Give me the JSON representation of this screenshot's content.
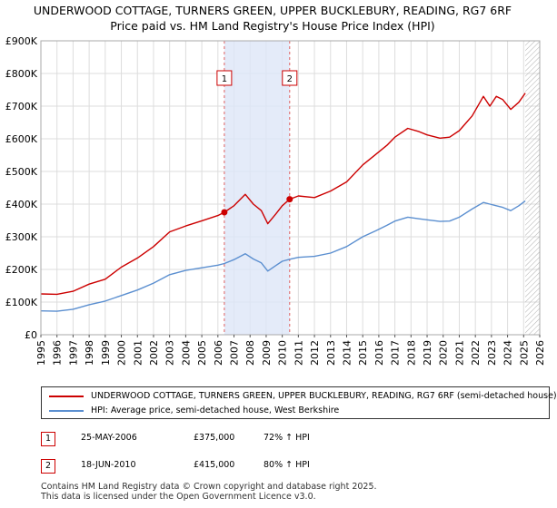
{
  "title_line1": "UNDERWOOD COTTAGE, TURNERS GREEN, UPPER BUCKLEBURY, READING, RG7 6RF",
  "title_line2": "Price paid vs. HM Land Registry's House Price Index (HPI)",
  "chart_data": {
    "type": "line",
    "title": "UNDERWOOD COTTAGE, TURNERS GREEN, UPPER BUCKLEBURY, READING, RG7 6RF — Price paid vs. HM Land Registry's House Price Index (HPI)",
    "xlim": [
      1995,
      2026
    ],
    "ylim": [
      0,
      900000
    ],
    "x_ticks": [
      "1995",
      "1996",
      "1997",
      "1998",
      "1999",
      "2000",
      "2001",
      "2002",
      "2003",
      "2004",
      "2005",
      "2006",
      "2007",
      "2008",
      "2009",
      "2010",
      "2011",
      "2012",
      "2013",
      "2014",
      "2015",
      "2016",
      "2017",
      "2018",
      "2019",
      "2020",
      "2021",
      "2022",
      "2023",
      "2024",
      "2025",
      "2026"
    ],
    "y_ticks": [
      {
        "value": 0,
        "label": "£0"
      },
      {
        "value": 100000,
        "label": "£100K"
      },
      {
        "value": 200000,
        "label": "£200K"
      },
      {
        "value": 300000,
        "label": "£300K"
      },
      {
        "value": 400000,
        "label": "£400K"
      },
      {
        "value": 500000,
        "label": "£500K"
      },
      {
        "value": 600000,
        "label": "£600K"
      },
      {
        "value": 700000,
        "label": "£700K"
      },
      {
        "value": 800000,
        "label": "£800K"
      },
      {
        "value": 900000,
        "label": "£900K"
      }
    ],
    "shaded_period": [
      2006.4,
      2010.46
    ],
    "forecast_from": 2025.1,
    "series": [
      {
        "name": "UNDERWOOD COTTAGE, TURNERS GREEN, UPPER BUCKLEBURY, READING, RG7 6RF (semi-detached house)",
        "color": "#cc0000",
        "points": [
          [
            1995,
            125000
          ],
          [
            1996,
            124000
          ],
          [
            1997,
            133000
          ],
          [
            1998,
            155000
          ],
          [
            1999,
            170000
          ],
          [
            2000,
            207000
          ],
          [
            2001,
            235000
          ],
          [
            2002,
            270000
          ],
          [
            2003,
            315000
          ],
          [
            2004,
            333000
          ],
          [
            2005,
            349000
          ],
          [
            2006,
            365000
          ],
          [
            2006.4,
            375000
          ],
          [
            2007,
            395000
          ],
          [
            2007.7,
            430000
          ],
          [
            2008.2,
            400000
          ],
          [
            2008.7,
            380000
          ],
          [
            2009.1,
            340000
          ],
          [
            2009.6,
            370000
          ],
          [
            2010.0,
            395000
          ],
          [
            2010.46,
            415000
          ],
          [
            2011,
            425000
          ],
          [
            2012,
            420000
          ],
          [
            2013,
            440000
          ],
          [
            2014,
            468000
          ],
          [
            2015,
            520000
          ],
          [
            2015.8,
            552000
          ],
          [
            2016.5,
            580000
          ],
          [
            2017,
            605000
          ],
          [
            2017.8,
            632000
          ],
          [
            2018.5,
            622000
          ],
          [
            2019,
            612000
          ],
          [
            2019.8,
            602000
          ],
          [
            2020.4,
            605000
          ],
          [
            2021,
            625000
          ],
          [
            2021.8,
            670000
          ],
          [
            2022.5,
            730000
          ],
          [
            2022.9,
            700000
          ],
          [
            2023.3,
            730000
          ],
          [
            2023.7,
            720000
          ],
          [
            2024.2,
            690000
          ],
          [
            2024.7,
            712000
          ],
          [
            2025.1,
            740000
          ]
        ]
      },
      {
        "name": "HPI: Average price, semi-detached house, West Berkshire",
        "color": "#5b8fd0",
        "points": [
          [
            1995,
            73000
          ],
          [
            1996,
            72000
          ],
          [
            1997,
            78000
          ],
          [
            1998,
            92000
          ],
          [
            1999,
            103000
          ],
          [
            2000,
            120000
          ],
          [
            2001,
            137000
          ],
          [
            2002,
            158000
          ],
          [
            2003,
            184000
          ],
          [
            2004,
            197000
          ],
          [
            2005,
            205000
          ],
          [
            2006,
            213000
          ],
          [
            2006.4,
            218000
          ],
          [
            2007,
            230000
          ],
          [
            2007.7,
            248000
          ],
          [
            2008.2,
            232000
          ],
          [
            2008.7,
            220000
          ],
          [
            2009.1,
            195000
          ],
          [
            2009.6,
            212000
          ],
          [
            2010.0,
            225000
          ],
          [
            2010.46,
            231000
          ],
          [
            2011,
            237000
          ],
          [
            2012,
            240000
          ],
          [
            2013,
            250000
          ],
          [
            2014,
            270000
          ],
          [
            2015,
            300000
          ],
          [
            2015.8,
            318000
          ],
          [
            2016.5,
            335000
          ],
          [
            2017,
            348000
          ],
          [
            2017.8,
            360000
          ],
          [
            2018.5,
            355000
          ],
          [
            2019,
            352000
          ],
          [
            2019.8,
            347000
          ],
          [
            2020.4,
            348000
          ],
          [
            2021,
            360000
          ],
          [
            2021.8,
            385000
          ],
          [
            2022.5,
            405000
          ],
          [
            2022.9,
            400000
          ],
          [
            2023.3,
            395000
          ],
          [
            2023.7,
            390000
          ],
          [
            2024.2,
            380000
          ],
          [
            2024.7,
            395000
          ],
          [
            2025.1,
            410000
          ]
        ]
      }
    ],
    "markers": [
      {
        "label": "1",
        "x": 2006.4,
        "y": 375000
      },
      {
        "label": "2",
        "x": 2010.46,
        "y": 415000
      }
    ]
  },
  "legend": [
    {
      "label": "UNDERWOOD COTTAGE, TURNERS GREEN, UPPER BUCKLEBURY, READING, RG7 6RF (semi-detached house)",
      "color": "#cc0000"
    },
    {
      "label": "HPI: Average price, semi-detached house, West Berkshire",
      "color": "#5b8fd0"
    }
  ],
  "transactions": [
    {
      "num": "1",
      "date": "25-MAY-2006",
      "price": "£375,000",
      "hpi": "72% ↑ HPI"
    },
    {
      "num": "2",
      "date": "18-JUN-2010",
      "price": "£415,000",
      "hpi": "80% ↑ HPI"
    }
  ],
  "footer_line1": "Contains HM Land Registry data © Crown copyright and database right 2025.",
  "footer_line2": "This data is licensed under the Open Government Licence v3.0."
}
